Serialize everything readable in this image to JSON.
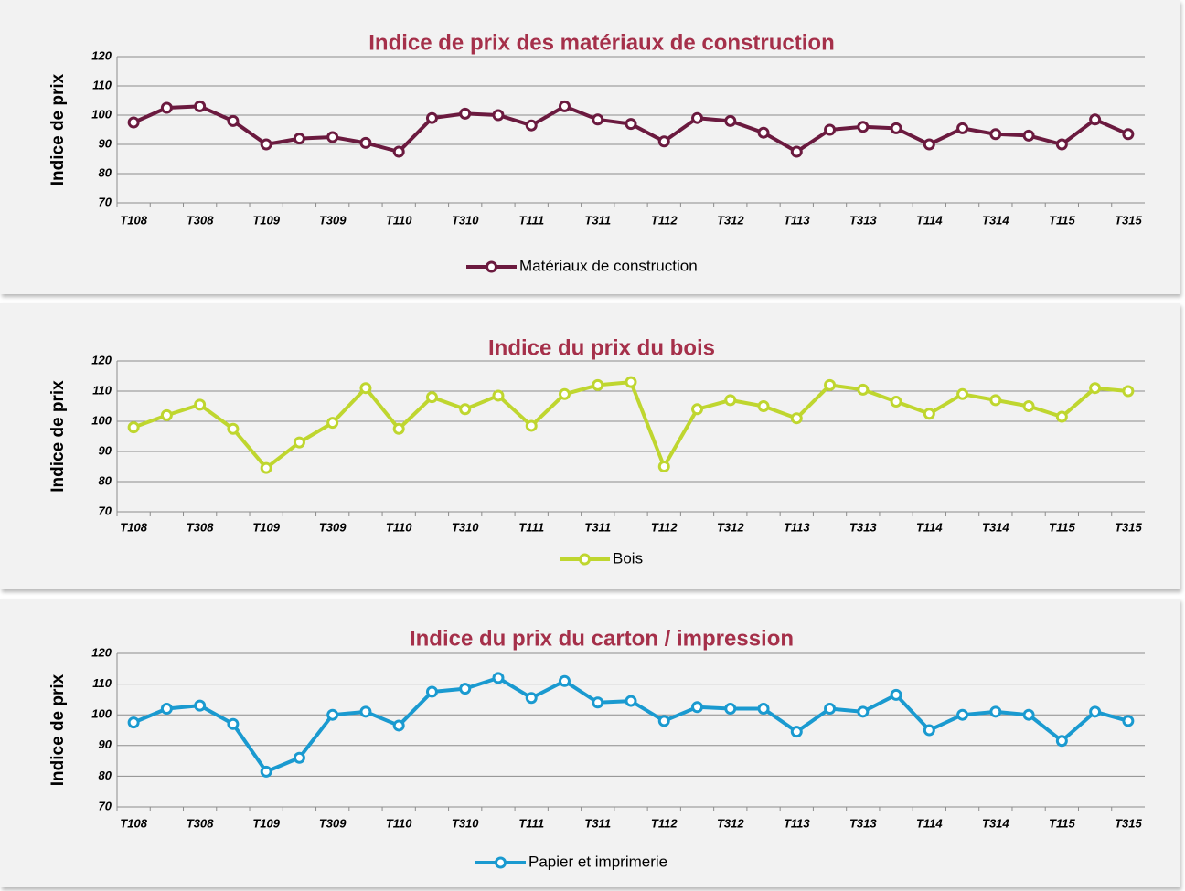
{
  "chart_data": [
    {
      "type": "line",
      "title": "Indice de prix des matériaux de construction",
      "y_label": "Indice de prix",
      "categories": [
        "T108",
        null,
        "T308",
        null,
        "T109",
        null,
        "T309",
        null,
        "T110",
        null,
        "T310",
        null,
        "T111",
        null,
        "T311",
        null,
        "T112",
        null,
        "T312",
        null,
        "T113",
        null,
        "T313",
        null,
        "T114",
        null,
        "T314",
        null,
        "T115",
        null,
        "T315"
      ],
      "series": [
        {
          "name": "Matériaux de construction",
          "color": "#6b1a3f",
          "values": [
            97.5,
            102.5,
            103,
            98,
            90,
            92,
            92.5,
            90.5,
            87.5,
            99,
            100.5,
            100,
            96.5,
            103,
            98.5,
            97,
            91,
            99,
            98,
            94,
            87.5,
            95,
            96,
            95.5,
            90,
            95.5,
            93.5,
            93,
            90,
            98.5,
            93.5
          ]
        }
      ],
      "ylim": [
        70,
        120
      ],
      "yticks": [
        70,
        80,
        90,
        100,
        110,
        120
      ],
      "grid": true,
      "legend": "bottom"
    },
    {
      "type": "line",
      "title": "Indice du prix du bois",
      "y_label": "Indice de prix",
      "categories": [
        "T108",
        null,
        "T308",
        null,
        "T109",
        null,
        "T309",
        null,
        "T110",
        null,
        "T310",
        null,
        "T111",
        null,
        "T311",
        null,
        "T112",
        null,
        "T312",
        null,
        "T113",
        null,
        "T313",
        null,
        "T114",
        null,
        "T314",
        null,
        "T115",
        null,
        "T315"
      ],
      "series": [
        {
          "name": "Bois",
          "color": "#bfd62f",
          "values": [
            98,
            102,
            105.5,
            97.5,
            84.5,
            93,
            99.5,
            111,
            97.5,
            108,
            104,
            108.5,
            98.5,
            109,
            112,
            113,
            85,
            104,
            107,
            105,
            101,
            112,
            110.5,
            106.5,
            102.5,
            109,
            107,
            105,
            101.5,
            111,
            110
          ]
        }
      ],
      "ylim": [
        70,
        120
      ],
      "yticks": [
        70,
        80,
        90,
        100,
        110,
        120
      ],
      "grid": true,
      "legend": "bottom"
    },
    {
      "type": "line",
      "title": "Indice du prix du carton / impression",
      "y_label": "Indice de prix",
      "categories": [
        "T108",
        null,
        "T308",
        null,
        "T109",
        null,
        "T309",
        null,
        "T110",
        null,
        "T310",
        null,
        "T111",
        null,
        "T311",
        null,
        "T112",
        null,
        "T312",
        null,
        "T113",
        null,
        "T313",
        null,
        "T114",
        null,
        "T314",
        null,
        "T115",
        null,
        "T315"
      ],
      "series": [
        {
          "name": "Papier et imprimerie",
          "color": "#1a9ad0",
          "values": [
            97.5,
            102,
            103,
            97,
            81.5,
            86,
            100,
            101,
            96.5,
            107.5,
            108.5,
            112,
            105.5,
            111,
            104,
            104.5,
            98,
            102.5,
            102,
            102,
            94.5,
            102,
            101,
            106.5,
            95,
            100,
            101,
            100,
            91.5,
            101,
            98
          ]
        }
      ],
      "ylim": [
        70,
        120
      ],
      "yticks": [
        70,
        80,
        90,
        100,
        110,
        120
      ],
      "grid": true,
      "legend": "bottom"
    }
  ]
}
